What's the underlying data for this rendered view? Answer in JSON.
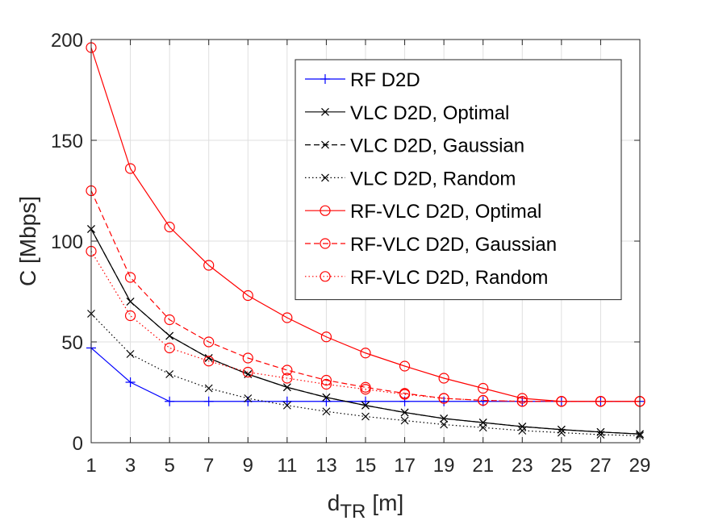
{
  "chart_data": {
    "type": "line",
    "xlabel": "d",
    "xlabel_sub": "TR",
    "xlabel_unit": "[m]",
    "ylabel": "C [Mbps]",
    "xlim": [
      1,
      29
    ],
    "ylim": [
      0,
      200
    ],
    "xticks": [
      1,
      3,
      5,
      7,
      9,
      11,
      13,
      15,
      17,
      19,
      21,
      23,
      25,
      27,
      29
    ],
    "yticks": [
      0,
      50,
      100,
      150,
      200
    ],
    "grid": true,
    "legend_position": "top-right",
    "x": [
      1,
      3,
      5,
      7,
      9,
      11,
      13,
      15,
      17,
      19,
      21,
      23,
      25,
      27,
      29
    ],
    "series": [
      {
        "name": "RF D2D",
        "color": "#0000ff",
        "dash": "solid",
        "marker": "plus",
        "values": [
          47,
          30,
          20.5,
          20.5,
          20.5,
          20.5,
          20.5,
          20.5,
          20.5,
          20.5,
          20.5,
          20.5,
          20.5,
          20.5,
          20.5
        ]
      },
      {
        "name": "VLC D2D, Optimal",
        "color": "#000000",
        "dash": "solid",
        "marker": "x",
        "values": [
          106,
          70,
          53,
          42,
          34,
          27.5,
          22.5,
          18.5,
          15,
          12,
          10,
          8,
          6.5,
          5.3,
          4.3
        ]
      },
      {
        "name": "VLC D2D, Gaussian",
        "color": "#000000",
        "dash": "dashed",
        "marker": "x",
        "values": [
          106,
          70,
          53,
          42,
          34,
          27.5,
          22.5,
          18.5,
          15,
          12,
          10,
          8,
          6.5,
          5.3,
          4.3
        ]
      },
      {
        "name": "VLC D2D, Random",
        "color": "#000000",
        "dash": "dotted",
        "marker": "x",
        "values": [
          64,
          44,
          34,
          27,
          22,
          18.5,
          15.5,
          13,
          11,
          9,
          7.5,
          6,
          5,
          4,
          3.5
        ]
      },
      {
        "name": "RF-VLC D2D, Optimal",
        "color": "#ff0000",
        "dash": "solid",
        "marker": "circle",
        "values": [
          196,
          136,
          107,
          88,
          73,
          62,
          52.5,
          44.5,
          38,
          32,
          27,
          22,
          20.5,
          20.5,
          20.5
        ]
      },
      {
        "name": "RF-VLC D2D, Gaussian",
        "color": "#ff0000",
        "dash": "dashed",
        "marker": "circle",
        "values": [
          125,
          82,
          61,
          50,
          42,
          36,
          31,
          27.5,
          24.5,
          22,
          21,
          20.5,
          20.5,
          20.5,
          20.5
        ]
      },
      {
        "name": "RF-VLC D2D, Random",
        "color": "#ff0000",
        "dash": "dotted",
        "marker": "circle",
        "values": [
          95,
          63,
          47,
          40.5,
          35,
          32,
          29,
          26.5,
          24,
          22,
          21,
          20.5,
          20.5,
          20.5,
          20.5
        ]
      }
    ]
  }
}
